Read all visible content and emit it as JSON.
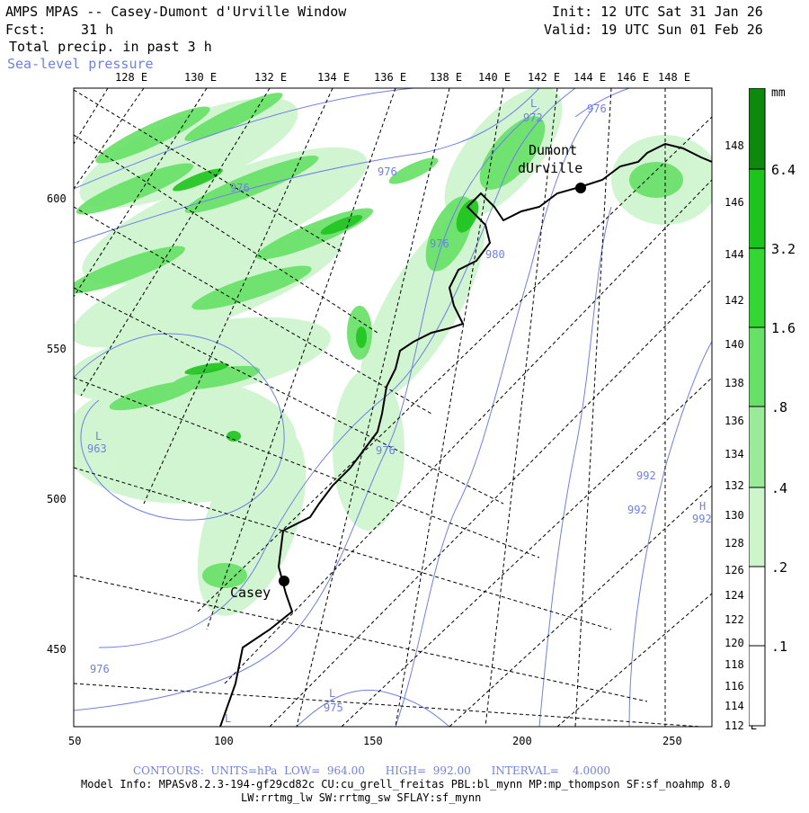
{
  "header": {
    "title": "AMPS MPAS -- Casey-Dumont d'Urville Window",
    "init": "Init: 12 UTC Sat 31 Jan 26",
    "fcst_label": "Fcst:",
    "fcst_value": "31 h",
    "valid": "Valid: 19 UTC Sun 01 Feb 26",
    "field": "Total precip. in past 3 h",
    "overlay": "Sea-level pressure"
  },
  "colors": {
    "overlay_text": "#6f7fe8",
    "contour_line": "#6f7fe8",
    "precip_light": "#ccf5cc",
    "precip_mid": "#66e066",
    "precip_strong": "#1ec41e",
    "precip_max": "#0d8a0d",
    "coast": "#000000"
  },
  "map": {
    "top_lon_labels": [
      "128 E",
      "130 E",
      "132 E",
      "134 E",
      "136 E",
      "138 E",
      "140 E",
      "142 E",
      "144 E",
      "146 E",
      "148 E"
    ],
    "right_lon_labels": [
      "148 E",
      "146 E",
      "144 E",
      "142 E",
      "140 E",
      "138 E",
      "136 E",
      "134 E",
      "132 E",
      "130 E",
      "128 E",
      "126 E",
      "124 E",
      "122 E",
      "120 E",
      "118 E",
      "116 E",
      "114 E",
      "112 E"
    ],
    "x_axis": [
      50,
      100,
      150,
      200,
      250
    ],
    "y_axis": [
      600,
      550,
      500,
      450
    ],
    "stations": [
      {
        "name_line1": "Dumont",
        "name_line2": "dUrville"
      },
      {
        "name_line1": "Casey",
        "name_line2": ""
      }
    ],
    "pressure_labels": [
      "972",
      "976",
      "976",
      "976",
      "980",
      "976",
      "963",
      "976",
      "976",
      "992",
      "992",
      "992",
      "975"
    ],
    "low_markers": [
      "L",
      "L",
      "L",
      "L"
    ],
    "high_markers": [
      "H"
    ]
  },
  "colorbar": {
    "unit": "mm",
    "labels": [
      "6.4",
      "3.2",
      "1.6",
      ".8",
      ".4",
      ".2",
      ".1"
    ]
  },
  "footer": {
    "contours": "CONTOURS:  UNITS=hPa  LOW=  964.00      HIGH=  992.00      INTERVAL=    4.0000",
    "model_info": "Model Info: MPASv8.2.3-194-gf29cd82c CU:cu_grell_freitas PBL:bl_mynn MP:mp_thompson SF:sf_noahmp 8.0",
    "model_info2": "LW:rrtmg_lw SW:rrtmg_sw SFLAY:sf_mynn"
  }
}
